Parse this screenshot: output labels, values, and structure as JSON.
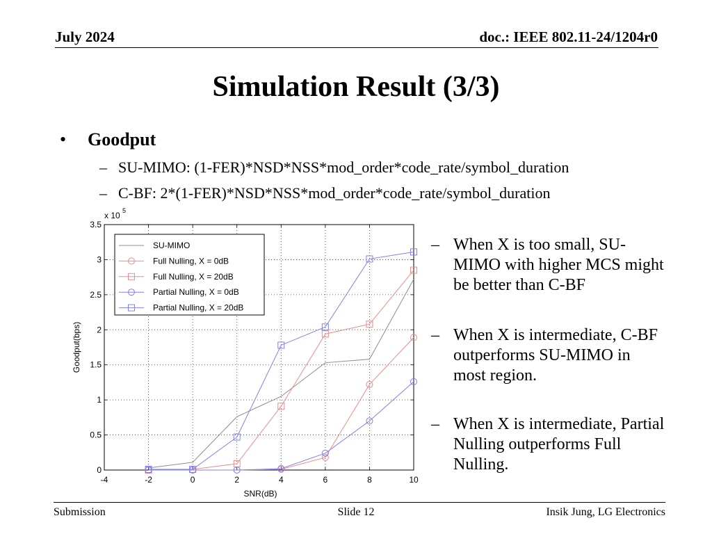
{
  "header": {
    "date": "July 2024",
    "doc": "doc.: IEEE 802.11-24/1204r0"
  },
  "title": "Simulation Result (3/3)",
  "bullet": {
    "marker": "•",
    "label": "Goodput",
    "subs": [
      {
        "marker": "–",
        "text": "SU-MIMO: (1-FER)*NSD*NSS*mod_order*code_rate/symbol_duration"
      },
      {
        "marker": "–",
        "text": "C-BF: 2*(1-FER)*NSD*NSS*mod_order*code_rate/symbol_duration"
      }
    ]
  },
  "notes": [
    {
      "marker": "–",
      "text": "When X is too small, SU-MIMO with higher MCS might be better than C-BF"
    },
    {
      "marker": "–",
      "text": "When X is intermediate, C-BF outperforms SU-MIMO in most region."
    },
    {
      "marker": "–",
      "text": "When X is intermediate, Partial Nulling outperforms Full Nulling."
    }
  ],
  "footer": {
    "left": "Submission",
    "center": "Slide 12",
    "right": "Insik Jung, LG Electronics"
  },
  "chart_data": {
    "type": "line",
    "xlabel": "SNR(dB)",
    "ylabel": "Goodput(bps)",
    "y_exponent_label": "x 10",
    "y_exponent": "5",
    "xlim": [
      -4,
      10
    ],
    "ylim": [
      0,
      3.5
    ],
    "xticks": [
      "-4",
      "-2",
      "0",
      "2",
      "4",
      "6",
      "8",
      "10"
    ],
    "yticks": [
      "0",
      "0.5",
      "1",
      "1.5",
      "2",
      "2.5",
      "3",
      "3.5"
    ],
    "grid": true,
    "legend_position": "top-left",
    "x": [
      -2,
      0,
      2,
      4,
      6,
      8,
      10
    ],
    "series": [
      {
        "name": "SU-MIMO",
        "color": "#8c8c8c",
        "marker": "none",
        "values": [
          0.03,
          0.11,
          0.76,
          1.05,
          1.53,
          1.58,
          2.72
        ]
      },
      {
        "name": "Full Nulling, X = 0dB",
        "color": "#f08a8a",
        "marker": "circle",
        "values": [
          0.0,
          0.0,
          0.0,
          0.01,
          0.18,
          1.22,
          1.89
        ]
      },
      {
        "name": "Full Nulling, X = 20dB",
        "color": "#f08a8a",
        "marker": "square",
        "values": [
          0.0,
          0.01,
          0.09,
          0.91,
          1.94,
          2.08,
          2.85
        ]
      },
      {
        "name": "Partial Nulling, X = 0dB",
        "color": "#7f7ff2",
        "marker": "circle",
        "values": [
          0.0,
          0.0,
          0.0,
          0.02,
          0.24,
          0.7,
          1.26
        ]
      },
      {
        "name": "Partial Nulling, X = 20dB",
        "color": "#7f7ff2",
        "marker": "square",
        "values": [
          0.01,
          0.01,
          0.47,
          1.78,
          2.04,
          3.01,
          3.11
        ]
      }
    ]
  }
}
